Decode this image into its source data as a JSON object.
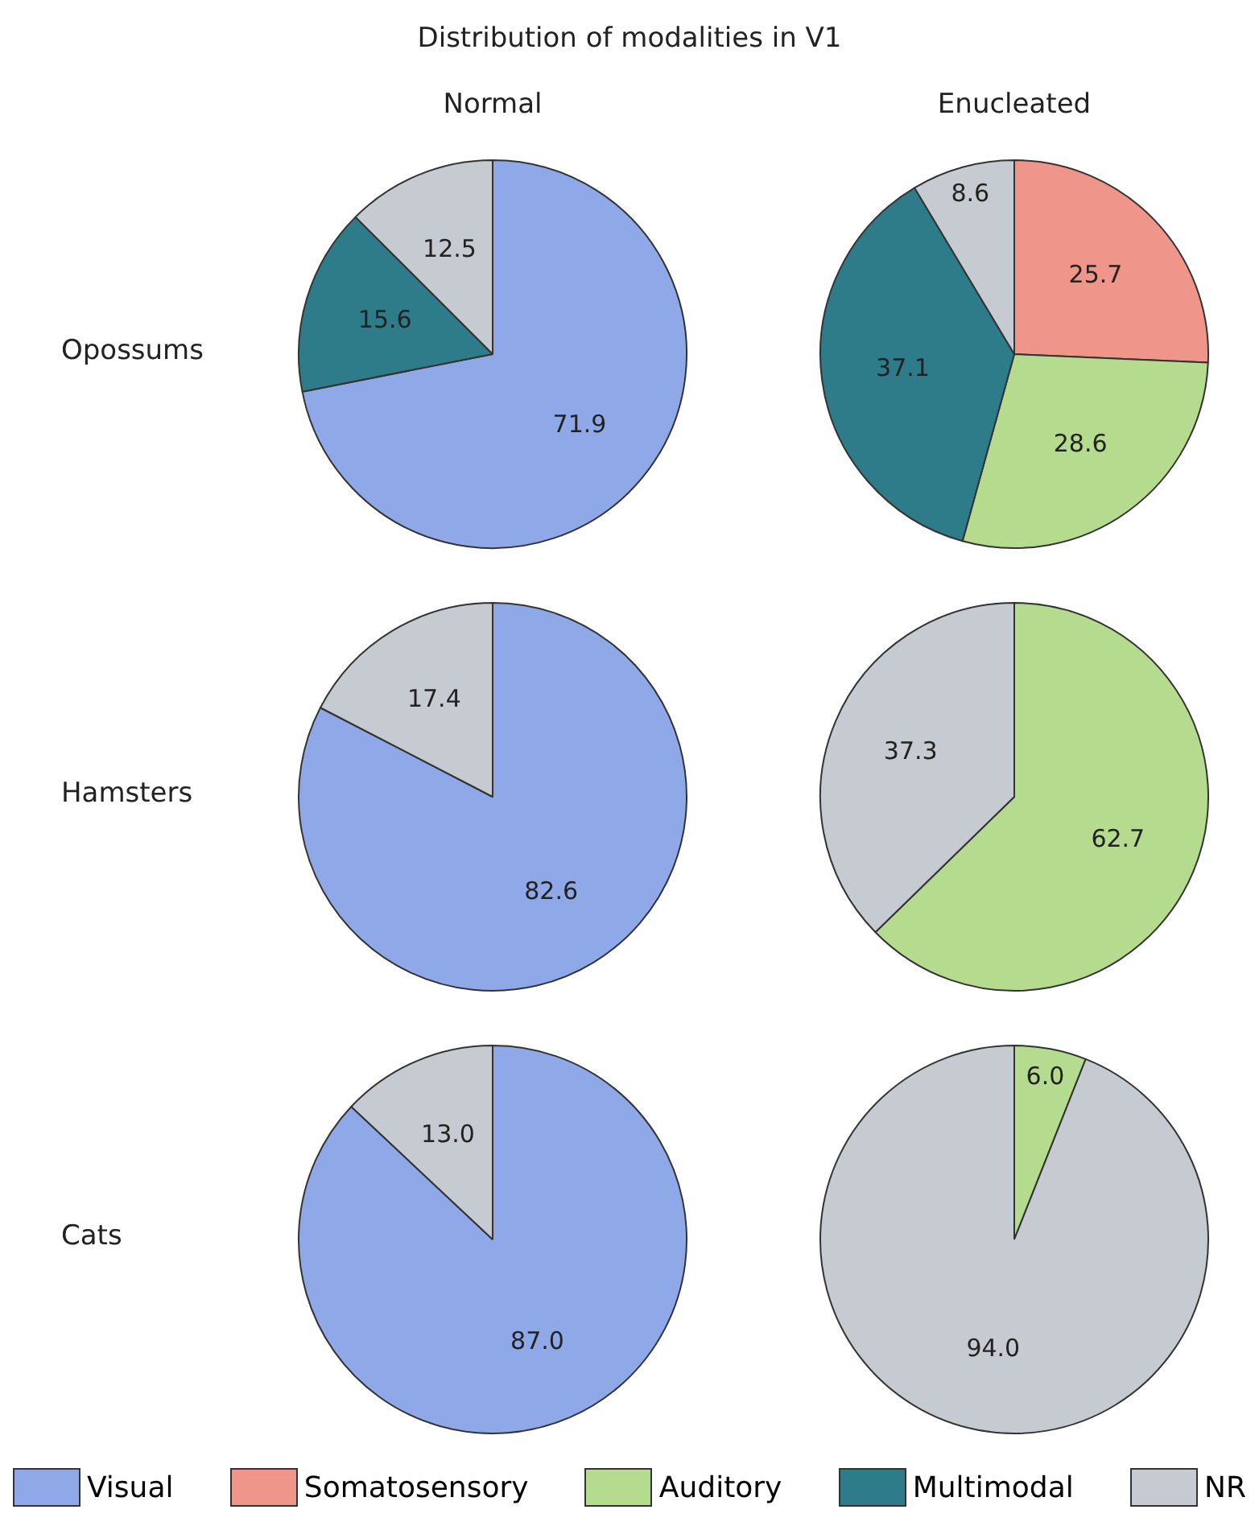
{
  "chart_data": [
    {
      "type": "pie",
      "title": "Distribution of modalities in V1",
      "subtitle": "Normal",
      "ylabel": "Opossums",
      "categories": [
        "Visual",
        "Somatosensory",
        "Auditory",
        "Multimodal",
        "NR"
      ],
      "values": [
        71.9,
        0,
        0,
        15.6,
        12.5
      ],
      "value_labels": [
        "71.9",
        null,
        null,
        "15.6",
        "12.5"
      ],
      "colors": [
        "#8fa8e8",
        "#f0958a",
        "#b5db8f",
        "#2e7b8a",
        "#c5cbd0"
      ],
      "legend": "bottom"
    },
    {
      "type": "pie",
      "subtitle": "Enucleated",
      "categories": [
        null,
        null,
        null,
        null,
        null
      ],
      "values": [
        0,
        25.7,
        28.6,
        37.1,
        8.6
      ],
      "value_labels": [
        null,
        "25.7",
        "28.6",
        "37.1",
        "8.6"
      ],
      "colors": [
        "#8fa8e8",
        "#f0958a",
        "#b5db8f",
        "#2e7b8a",
        "#c5cbd0"
      ]
    },
    {
      "type": "pie",
      "ylabel": "Hamsters",
      "categories": [
        null,
        null,
        null,
        null,
        null
      ],
      "values": [
        82.6,
        0,
        0,
        0,
        17.4
      ],
      "value_labels": [
        "82.6",
        null,
        null,
        null,
        "17.4"
      ],
      "colors": [
        "#8fa8e8",
        "#f0958a",
        "#b5db8f",
        "#2e7b8a",
        "#c5cbd0"
      ]
    },
    {
      "type": "pie",
      "categories": [
        null,
        null,
        null,
        null,
        null
      ],
      "values": [
        0,
        0,
        62.7,
        0,
        37.3
      ],
      "value_labels": [
        null,
        null,
        "62.7",
        null,
        "37.3"
      ],
      "colors": [
        "#8fa8e8",
        "#f0958a",
        "#b5db8f",
        "#2e7b8a",
        "#c5cbd0"
      ]
    },
    {
      "type": "pie",
      "ylabel": "Cats",
      "categories": [
        null,
        null,
        null,
        null,
        null
      ],
      "values": [
        87.0,
        0,
        0,
        0,
        13.0
      ],
      "value_labels": [
        "87.0",
        null,
        null,
        null,
        "13.0"
      ],
      "colors": [
        "#8fa8e8",
        "#f0958a",
        "#b5db8f",
        "#2e7b8a",
        "#c5cbd0"
      ]
    },
    {
      "type": "pie",
      "categories": [
        null,
        null,
        null,
        null,
        null
      ],
      "values": [
        0,
        0,
        6.0,
        0,
        94.0
      ],
      "value_labels": [
        null,
        null,
        "6.0",
        null,
        "94.0"
      ],
      "colors": [
        "#8fa8e8",
        "#f0958a",
        "#b5db8f",
        "#2e7b8a",
        "#c5cbd0"
      ]
    }
  ]
}
